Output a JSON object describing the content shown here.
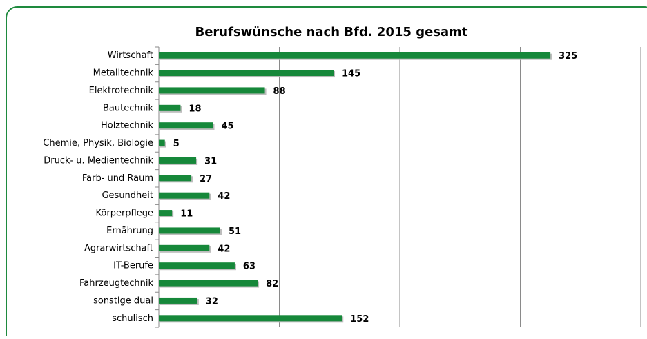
{
  "chart_data": {
    "type": "bar",
    "orientation": "horizontal",
    "title": "Berufswünsche  nach Bfd. 2015 gesamt",
    "categories": [
      "Wirtschaft",
      "Metalltechnik",
      "Elektrotechnik",
      "Bautechnik",
      "Holztechnik",
      "Chemie, Physik, Biologie",
      "Druck- u. Medientechnik",
      "Farb- und Raum",
      "Gesundheit",
      "Körperpflege",
      "Ernährung",
      "Agrarwirtschaft",
      "IT-Berufe",
      "Fahrzeugtechnik",
      "sonstige dual",
      "schulisch"
    ],
    "values": [
      325,
      145,
      88,
      18,
      45,
      5,
      31,
      27,
      42,
      11,
      51,
      42,
      63,
      82,
      32,
      152
    ],
    "color": "#16883a",
    "xlim": [
      0,
      400
    ],
    "xticks": [
      0,
      100,
      200,
      300,
      400
    ],
    "grid": true
  }
}
